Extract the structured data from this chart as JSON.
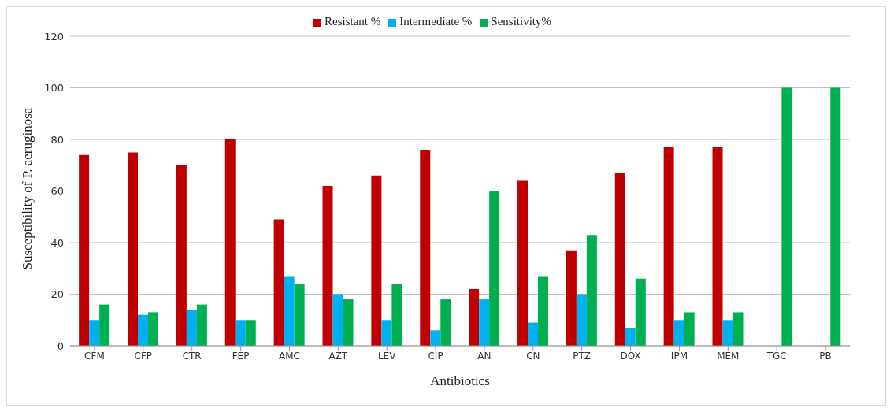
{
  "chart_data": {
    "type": "bar",
    "xlabel": "Antibiotics",
    "ylabel": "Susceptibility of P. aeruginosa",
    "categories": [
      "CFM",
      "CFP",
      "CTR",
      "FEP",
      "AMC",
      "AZT",
      "LEV",
      "CIP",
      "AN",
      "CN",
      "PTZ",
      "DOX",
      "IPM",
      "MEM",
      "TGC",
      "PB"
    ],
    "series": [
      {
        "name": "Resistant %",
        "color": "#c00000",
        "values": [
          74,
          75,
          70,
          80,
          49,
          62,
          66,
          76,
          22,
          64,
          37,
          67,
          77,
          77,
          0,
          0
        ]
      },
      {
        "name": "Intermediate %",
        "color": "#00b0f0",
        "values": [
          10,
          12,
          14,
          10,
          27,
          20,
          10,
          6,
          18,
          9,
          20,
          7,
          10,
          10,
          0,
          0
        ]
      },
      {
        "name": "Sensitivity%",
        "color": "#00b050",
        "values": [
          16,
          13,
          16,
          10,
          24,
          18,
          24,
          18,
          60,
          27,
          43,
          26,
          13,
          13,
          100,
          100
        ]
      }
    ],
    "ylim": [
      0,
      120
    ],
    "yticks": [
      0,
      20,
      40,
      60,
      80,
      100,
      120
    ],
    "grid": "y",
    "legend": "top"
  }
}
